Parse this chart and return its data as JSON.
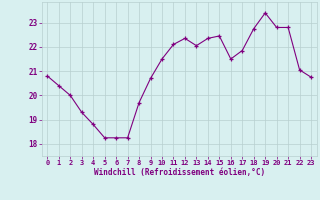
{
  "x": [
    0,
    1,
    2,
    3,
    4,
    5,
    6,
    7,
    8,
    9,
    10,
    11,
    12,
    13,
    14,
    15,
    16,
    17,
    18,
    19,
    20,
    21,
    22,
    23
  ],
  "y": [
    20.8,
    20.4,
    20.0,
    19.3,
    18.8,
    18.25,
    18.25,
    18.25,
    19.7,
    20.7,
    21.5,
    22.1,
    22.35,
    22.05,
    22.35,
    22.45,
    21.5,
    21.85,
    22.75,
    23.4,
    22.8,
    22.8,
    21.05,
    20.75
  ],
  "line_color": "#800080",
  "marker": "+",
  "bg_color": "#d8f0f0",
  "grid_color": "#b8d0d0",
  "xlabel": "Windchill (Refroidissement éolien,°C)",
  "xlabel_color": "#800080",
  "tick_color": "#800080",
  "label_color": "#800080",
  "ylim": [
    17.5,
    23.85
  ],
  "xlim": [
    -0.5,
    23.5
  ],
  "yticks": [
    18,
    19,
    20,
    21,
    22,
    23
  ],
  "xticks": [
    0,
    1,
    2,
    3,
    4,
    5,
    6,
    7,
    8,
    9,
    10,
    11,
    12,
    13,
    14,
    15,
    16,
    17,
    18,
    19,
    20,
    21,
    22,
    23
  ]
}
